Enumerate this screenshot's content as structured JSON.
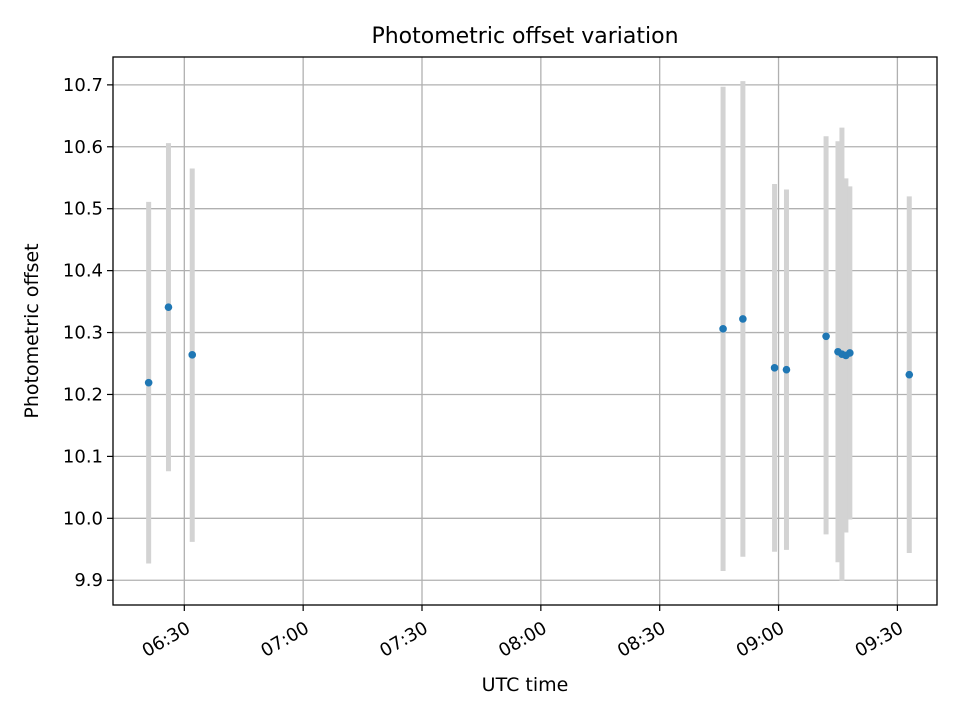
{
  "chart_data": {
    "type": "scatter",
    "title": "Photometric offset variation",
    "xlabel": "UTC time",
    "ylabel": "Photometric offset",
    "x_unit": "UTC time of day",
    "xlim": [
      "06:12",
      "09:40"
    ],
    "ylim": [
      9.86,
      10.745
    ],
    "x_ticks": [
      "06:30",
      "07:00",
      "07:30",
      "08:00",
      "08:30",
      "09:00",
      "09:30"
    ],
    "y_ticks": [
      "9.9",
      "10.0",
      "10.1",
      "10.2",
      "10.3",
      "10.4",
      "10.5",
      "10.6",
      "10.7"
    ],
    "grid": true,
    "legend": "none",
    "series": [
      {
        "marker_color": "#1f77b4",
        "errorbar_color": "#d3d3d3",
        "points": [
          {
            "x": "06:21",
            "y": 10.219,
            "ylow": 9.927,
            "yhigh": 10.511
          },
          {
            "x": "06:26",
            "y": 10.341,
            "ylow": 10.076,
            "yhigh": 10.606
          },
          {
            "x": "06:32",
            "y": 10.264,
            "ylow": 9.962,
            "yhigh": 10.565
          },
          {
            "x": "08:46",
            "y": 10.306,
            "ylow": 9.915,
            "yhigh": 10.697
          },
          {
            "x": "08:51",
            "y": 10.322,
            "ylow": 9.938,
            "yhigh": 10.706
          },
          {
            "x": "08:59",
            "y": 10.243,
            "ylow": 9.946,
            "yhigh": 10.54
          },
          {
            "x": "09:02",
            "y": 10.24,
            "ylow": 9.949,
            "yhigh": 10.531
          },
          {
            "x": "09:12",
            "y": 10.294,
            "ylow": 9.974,
            "yhigh": 10.617
          },
          {
            "x": "09:15",
            "y": 10.269,
            "ylow": 9.929,
            "yhigh": 10.609
          },
          {
            "x": "09:16",
            "y": 10.265,
            "ylow": 9.899,
            "yhigh": 10.631
          },
          {
            "x": "09:17",
            "y": 10.263,
            "ylow": 9.977,
            "yhigh": 10.549
          },
          {
            "x": "09:18",
            "y": 10.267,
            "ylow": 9.998,
            "yhigh": 10.536
          },
          {
            "x": "09:33",
            "y": 10.232,
            "ylow": 9.944,
            "yhigh": 10.52
          }
        ]
      }
    ]
  }
}
